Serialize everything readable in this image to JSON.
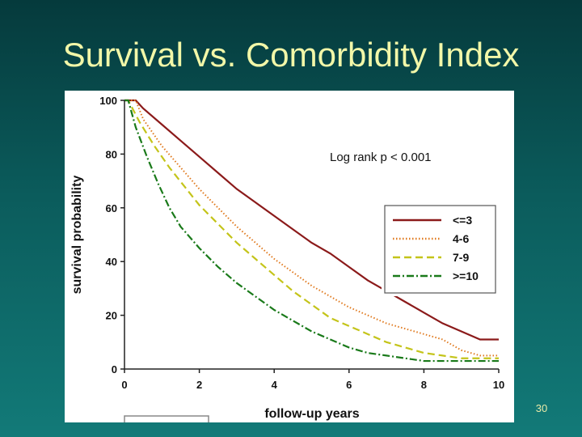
{
  "slide": {
    "title": "Survival vs. Comorbidity Index",
    "number": "30"
  },
  "chart_data": {
    "type": "line",
    "title": "",
    "xlabel": "follow-up years",
    "ylabel": "survival probability",
    "xlim": [
      0,
      10
    ],
    "ylim": [
      0,
      100
    ],
    "xticks": [
      0,
      2,
      4,
      6,
      8,
      10
    ],
    "yticks": [
      0,
      20,
      40,
      60,
      80,
      100
    ],
    "annotation": "Log rank p < 0.001",
    "legend_position": "right",
    "series": [
      {
        "name": "<=3",
        "color": "#8b1a1a",
        "dash": "solid",
        "x": [
          0.3,
          0.5,
          1.0,
          1.5,
          2.0,
          2.5,
          3.0,
          3.5,
          4.0,
          4.5,
          5.0,
          5.5,
          6.0,
          6.5,
          7.0,
          7.5,
          8.0,
          8.5,
          9.0,
          9.5,
          10.0
        ],
        "y": [
          100,
          97,
          91,
          85,
          79,
          73,
          67,
          62,
          57,
          52,
          47,
          43,
          38,
          33,
          29,
          25,
          21,
          17,
          14,
          11,
          11
        ]
      },
      {
        "name": "4-6",
        "color": "#e07a1f",
        "dash": "dotted",
        "x": [
          0.3,
          0.5,
          1.0,
          1.5,
          2.0,
          2.5,
          3.0,
          3.5,
          4.0,
          4.5,
          5.0,
          5.5,
          6.0,
          6.5,
          7.0,
          7.5,
          8.0,
          8.5,
          9.0,
          9.5,
          10.0
        ],
        "y": [
          100,
          93,
          83,
          75,
          67,
          60,
          53,
          47,
          41,
          36,
          31,
          27,
          23,
          20,
          17,
          15,
          13,
          11,
          7,
          5,
          5
        ]
      },
      {
        "name": "7-9",
        "color": "#c4c41a",
        "dash": "dashed",
        "x": [
          0.1,
          0.4,
          0.8,
          1.2,
          1.6,
          2.0,
          2.5,
          3.0,
          3.5,
          4.0,
          4.5,
          5.0,
          5.5,
          6.0,
          6.5,
          7.0,
          7.5,
          8.0,
          8.5,
          9.0,
          10.0
        ],
        "y": [
          100,
          92,
          83,
          75,
          68,
          61,
          54,
          47,
          41,
          35,
          29,
          24,
          19,
          16,
          13,
          10,
          8,
          6,
          5,
          4,
          4
        ]
      },
      {
        "name": ">=10",
        "color": "#1a7a1a",
        "dash": "dashdot",
        "x": [
          0.1,
          0.3,
          0.6,
          0.9,
          1.2,
          1.5,
          2.0,
          2.5,
          3.0,
          3.5,
          4.0,
          4.5,
          5.0,
          5.5,
          6.0,
          6.5,
          7.0,
          7.5,
          8.0,
          9.0,
          10.0
        ],
        "y": [
          100,
          90,
          79,
          69,
          60,
          53,
          45,
          38,
          32,
          27,
          22,
          18,
          14,
          11,
          8,
          6,
          5,
          4,
          3,
          3,
          3
        ]
      }
    ]
  }
}
